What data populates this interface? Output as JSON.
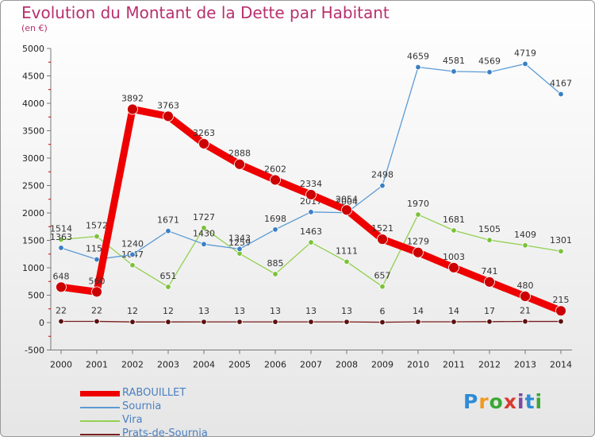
{
  "title": "Evolution du Montant de la Dette par Habitant",
  "subtitle": "(en €)",
  "logo": {
    "text": "Proxiti",
    "colors": [
      "#2e8bd6",
      "#f29a1f",
      "#3aa935",
      "#d93a2f",
      "#7c4a9e",
      "#2e8bd6",
      "#3aa935"
    ]
  },
  "chart_data": {
    "type": "line",
    "x": [
      "2000",
      "2001",
      "2002",
      "2003",
      "2004",
      "2005",
      "2006",
      "2007",
      "2008",
      "2009",
      "2010",
      "2011",
      "2012",
      "2013",
      "2014"
    ],
    "ylim": [
      -500,
      5000
    ],
    "yticks": [
      -500,
      0,
      500,
      1000,
      1500,
      2000,
      2500,
      3000,
      3500,
      4000,
      4500,
      5000
    ],
    "grid": false,
    "legend": "bottom-left",
    "series": [
      {
        "name": "RABOUILLET",
        "color": "#ee0000",
        "values": [
          648,
          560,
          3892,
          3763,
          3263,
          2888,
          2602,
          2334,
          2054,
          1521,
          1279,
          1003,
          741,
          480,
          215
        ]
      },
      {
        "name": "Sournia",
        "color": "#5b9bd5",
        "values": [
          1363,
          1152,
          1240,
          1671,
          1430,
          1343,
          1698,
          2017,
          2004,
          2498,
          4659,
          4581,
          4569,
          4719,
          4167
        ]
      },
      {
        "name": "Vira",
        "color": "#92d050",
        "values": [
          1514,
          1572,
          1047,
          651,
          1727,
          1259,
          885,
          1463,
          1111,
          657,
          1970,
          1681,
          1505,
          1409,
          1301
        ]
      },
      {
        "name": "Prats-de-Sournia",
        "color": "#7b1c1c",
        "values": [
          22,
          22,
          12,
          12,
          13,
          13,
          13,
          13,
          13,
          6,
          14,
          14,
          17,
          21,
          21
        ]
      }
    ]
  }
}
